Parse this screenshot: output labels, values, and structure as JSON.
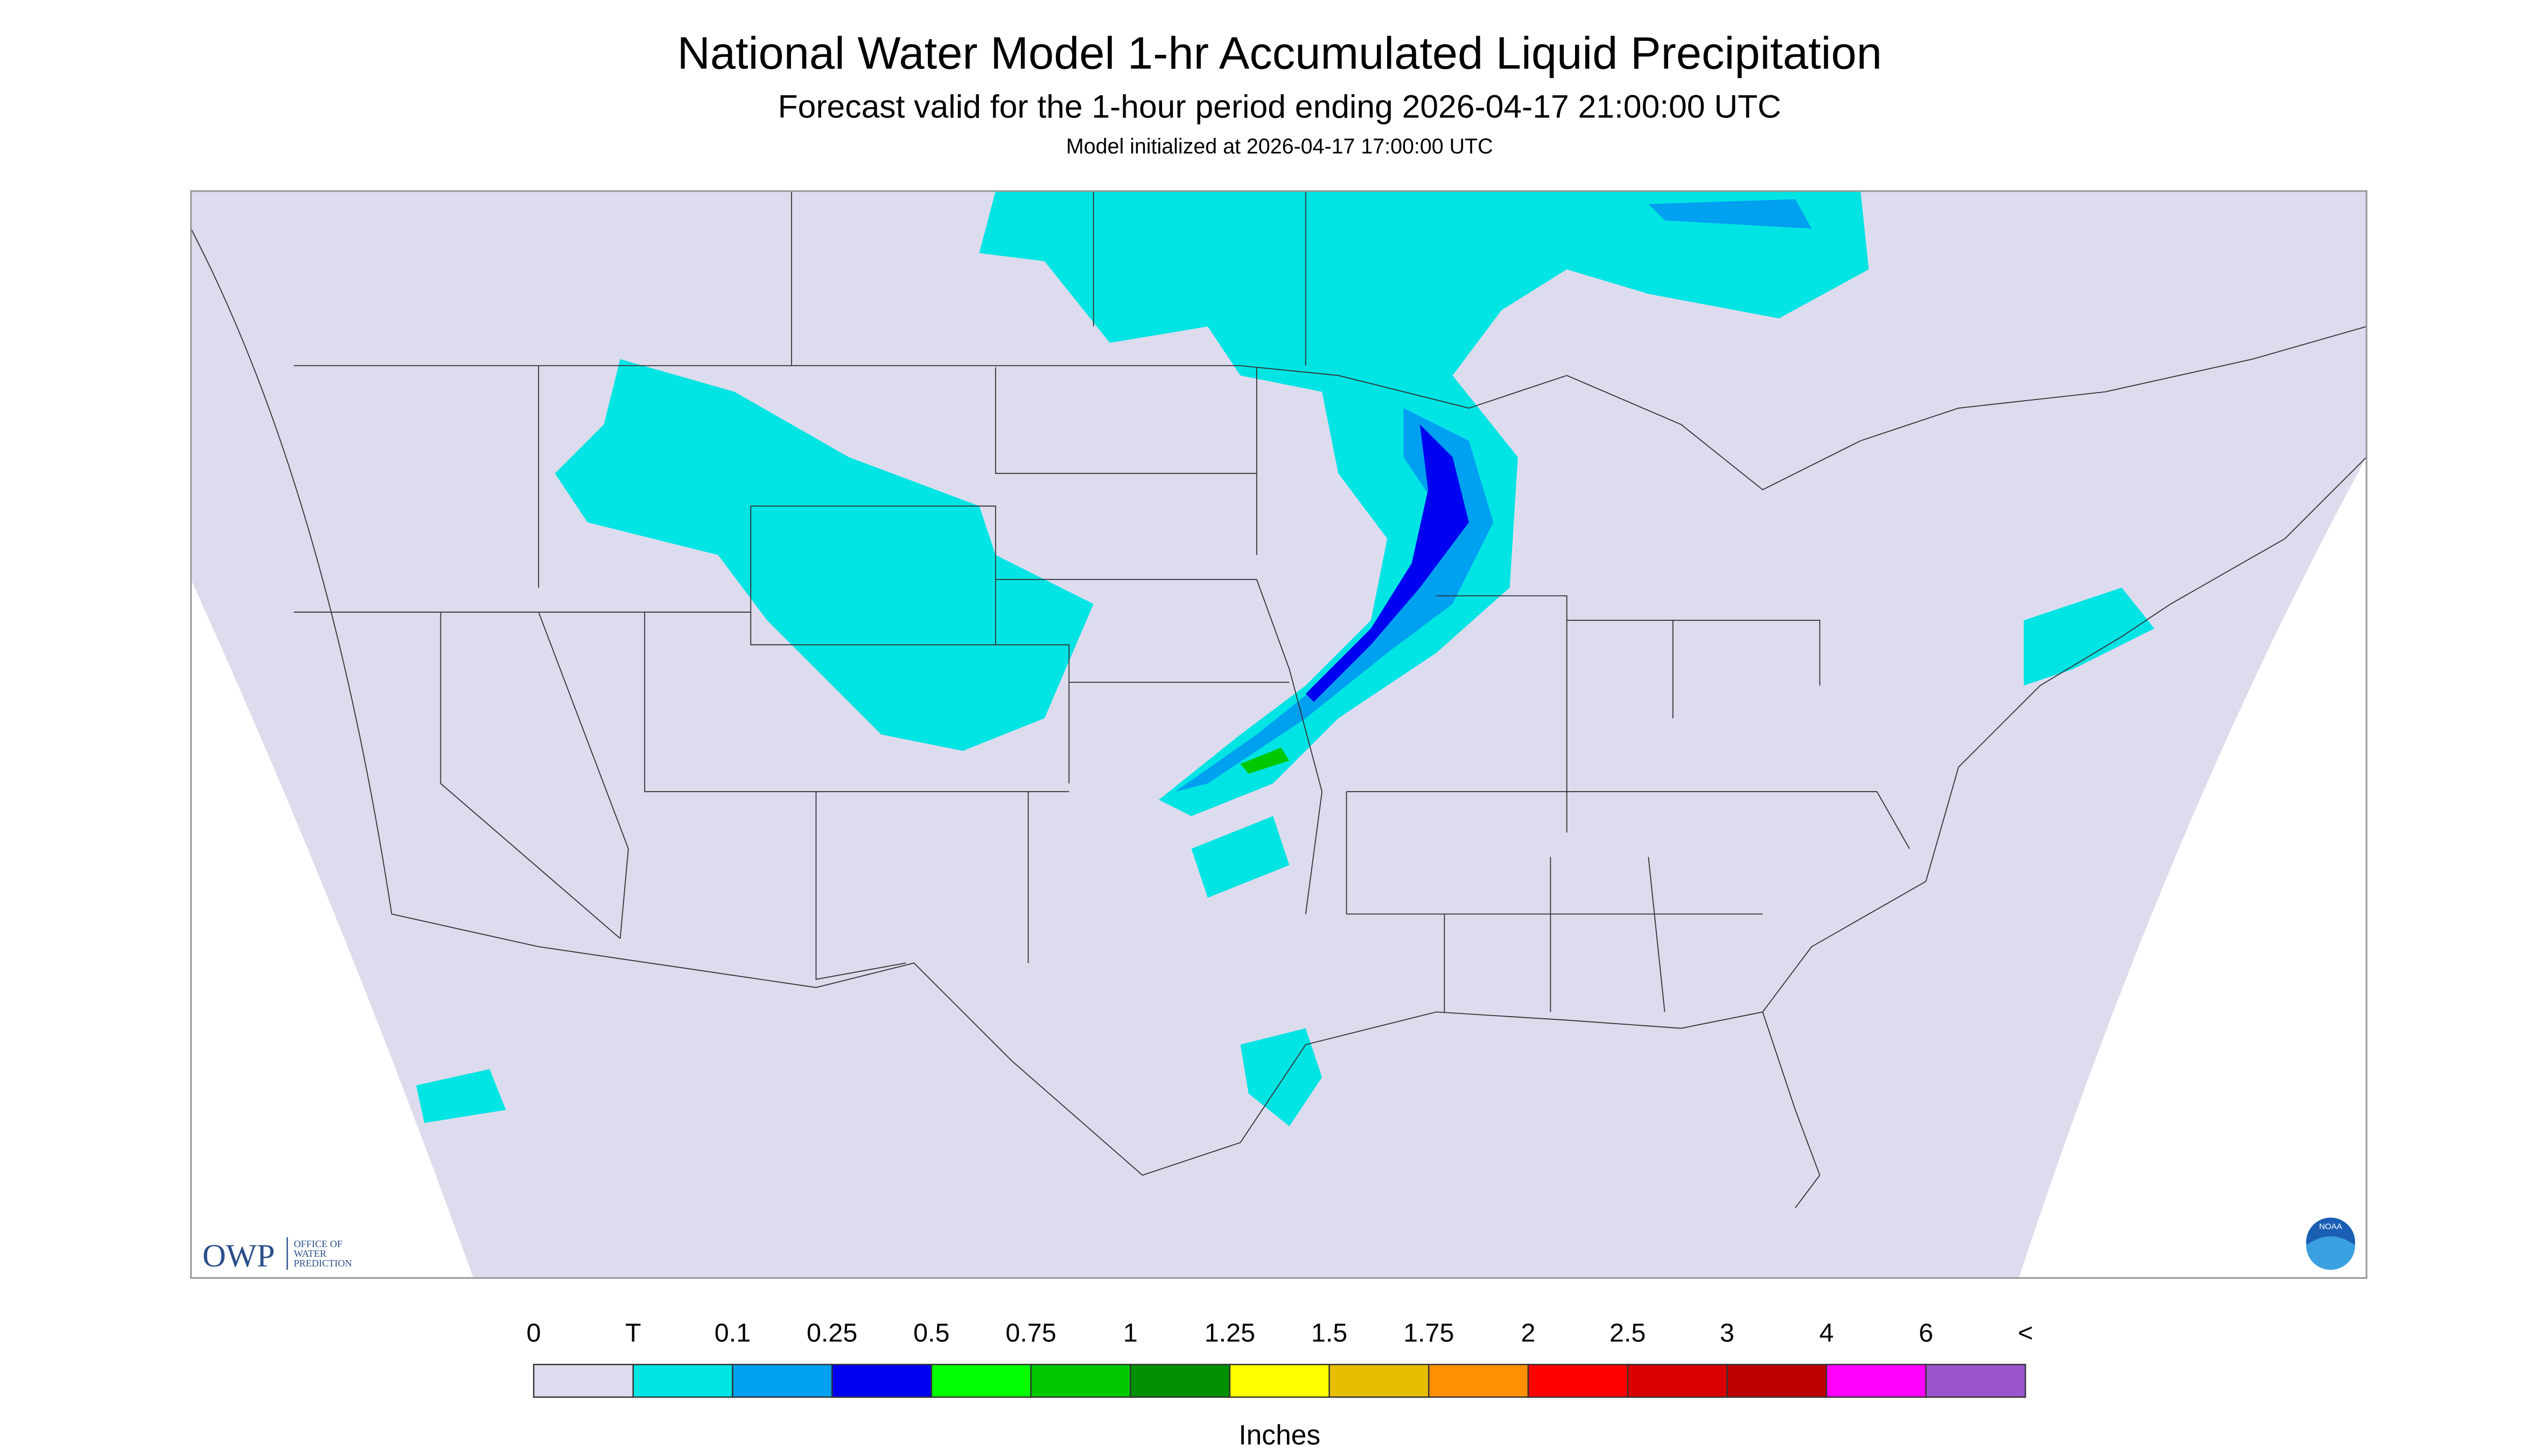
{
  "header": {
    "title": "National Water Model 1-hr Accumulated Liquid Precipitation",
    "subtitle": "Forecast valid for the 1-hour period ending 2026-04-17 21:00:00 UTC",
    "initialized": "Model initialized at 2026-04-17 17:00:00 UTC"
  },
  "legend": {
    "labels": [
      "0",
      "T",
      "0.1",
      "0.25",
      "0.5",
      "0.75",
      "1",
      "1.25",
      "1.5",
      "1.75",
      "2",
      "2.5",
      "3",
      "4",
      "6",
      "<"
    ],
    "colors": [
      "#dcdcee",
      "#00e4e4",
      "#00a0f0",
      "#0000f0",
      "#00ff00",
      "#00c800",
      "#009000",
      "#ffff00",
      "#e6be00",
      "#ff9000",
      "#ff0000",
      "#d80000",
      "#bc0000",
      "#ff00ff",
      "#9955c9"
    ],
    "unit": "Inches"
  },
  "logo": {
    "owp": "OWP",
    "office": [
      "OFFICE OF",
      "WATER",
      "PREDICTION"
    ],
    "noaa": "NOAA"
  }
}
